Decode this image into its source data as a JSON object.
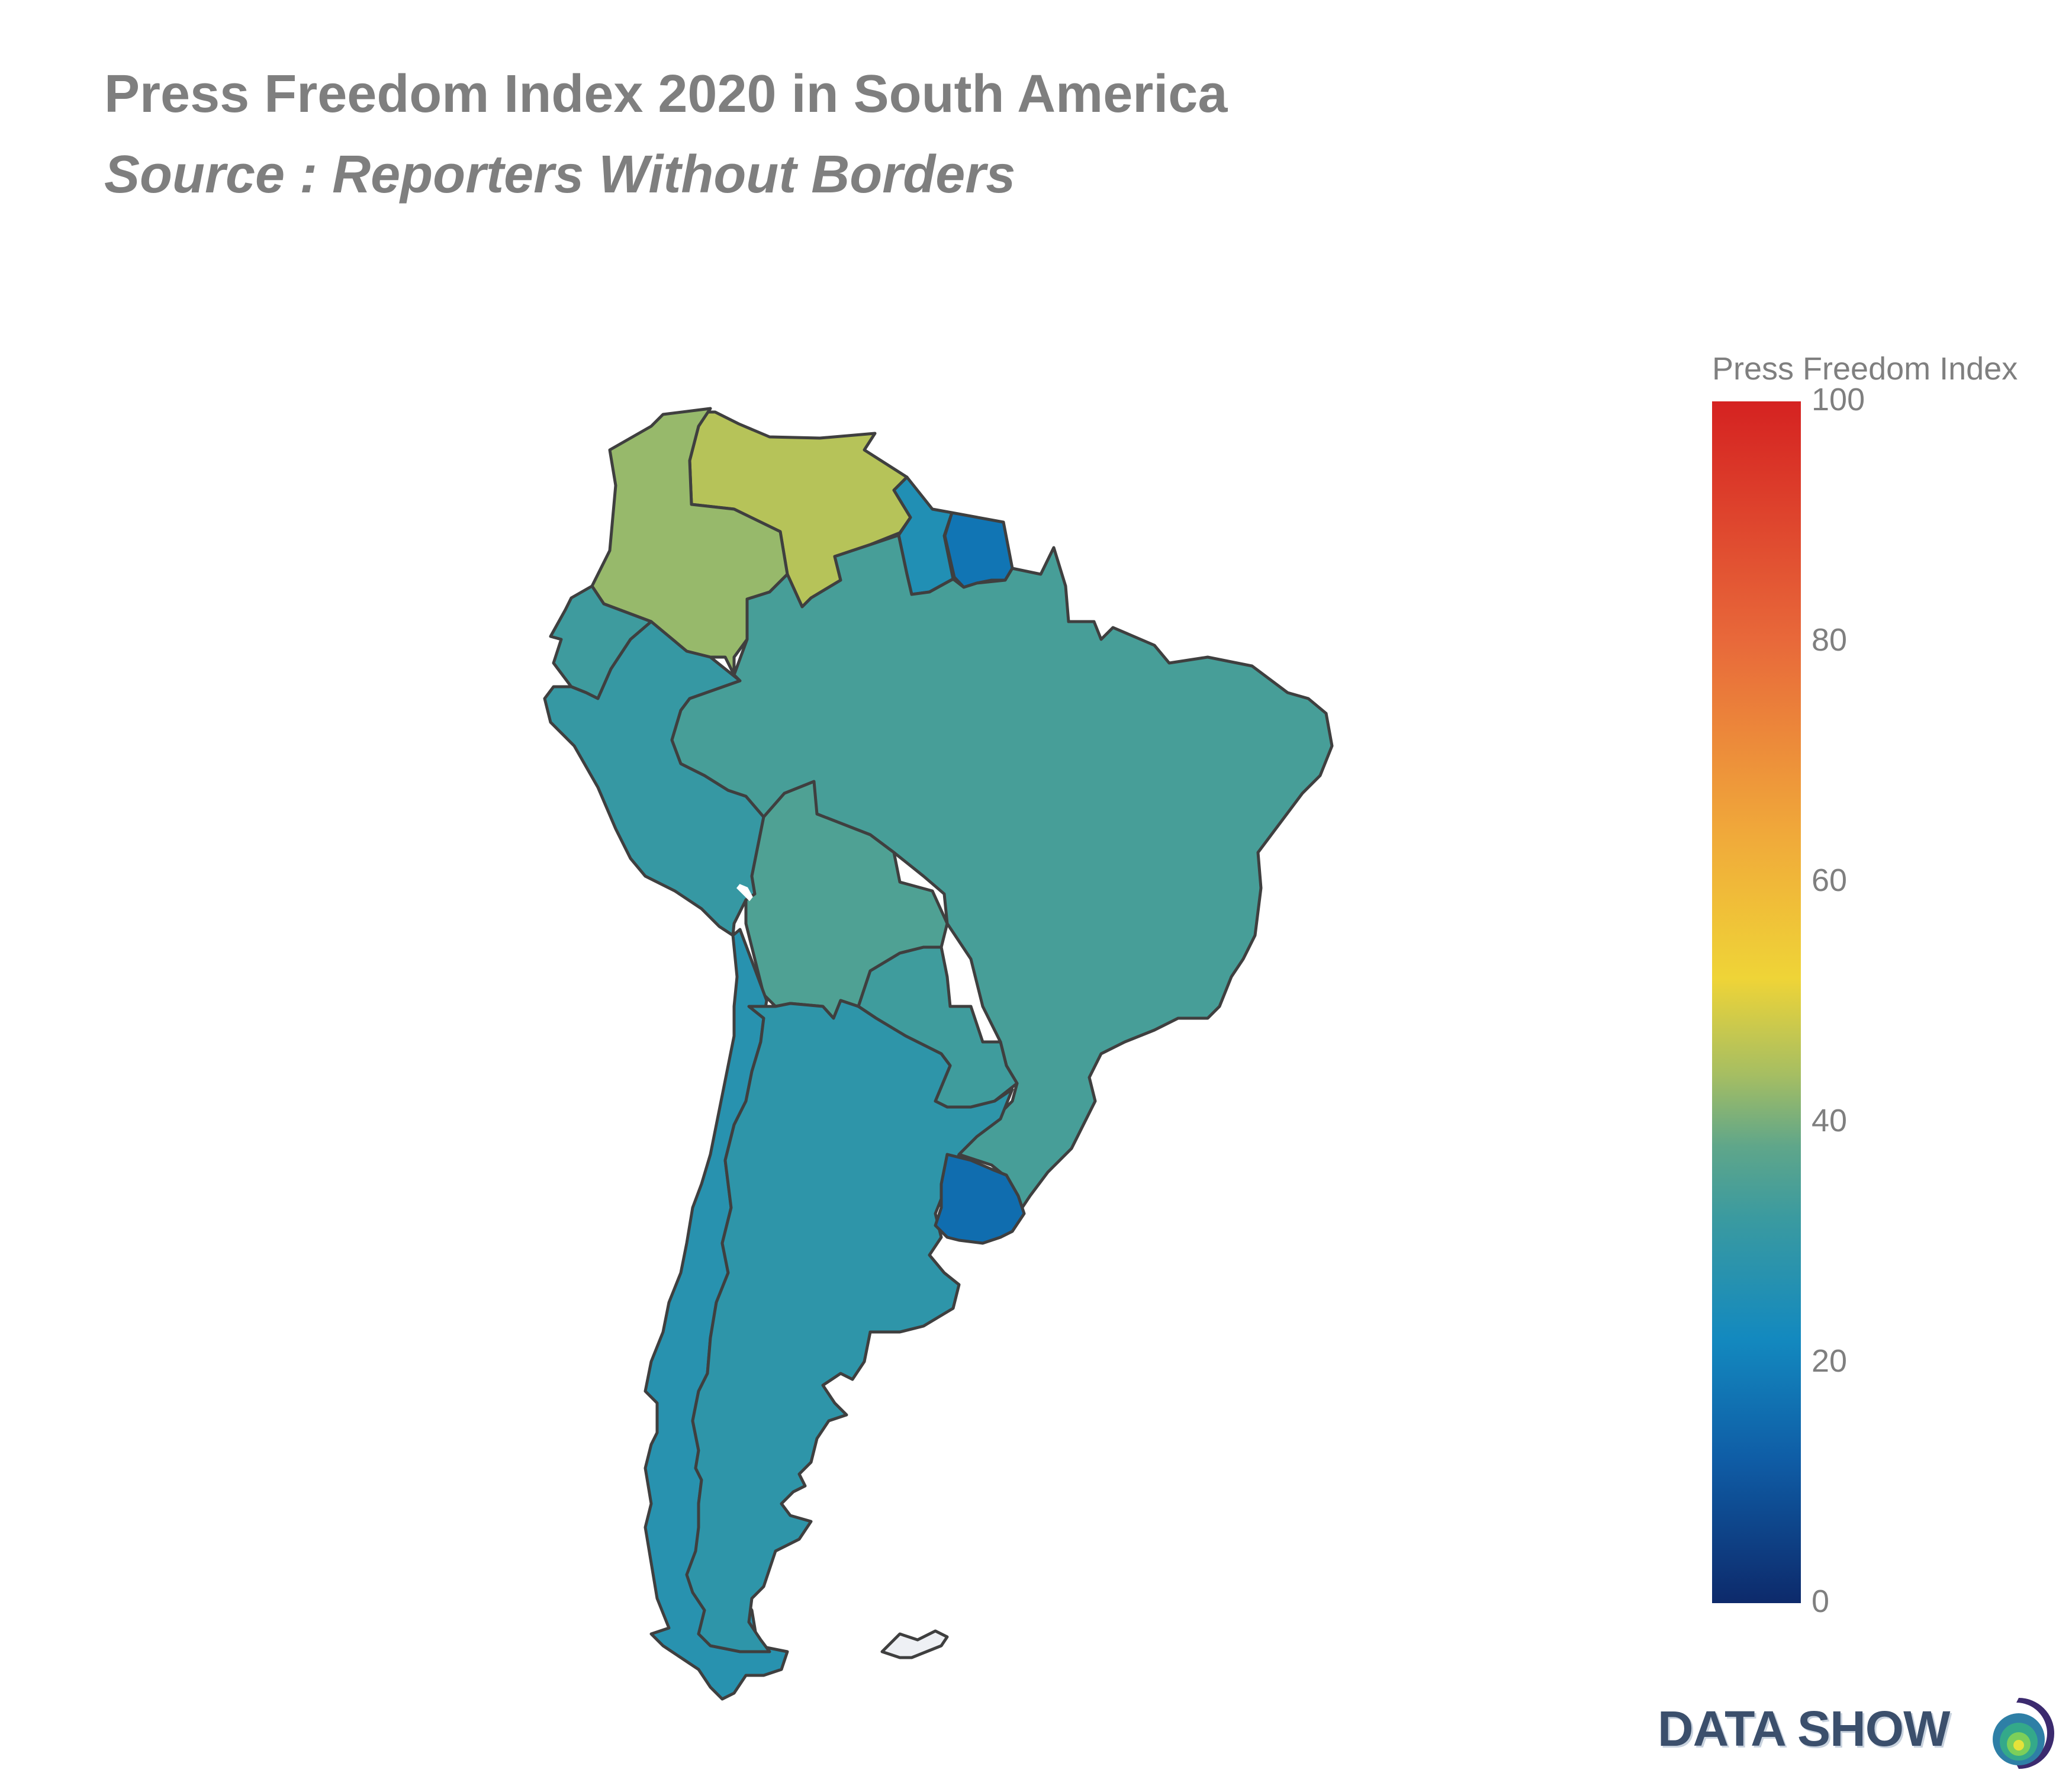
{
  "title": "Press Freedom Index 2020 in South America",
  "subtitle": "Source : Reporters Without Borders",
  "colorbar": {
    "title": "Press Freedom Index",
    "ticks": [
      "100",
      "80",
      "60",
      "40",
      "20",
      "0"
    ],
    "range": [
      0,
      100
    ],
    "colors": [
      "#0d2a6b",
      "#0f5da6",
      "#1389bf",
      "#3a9aa0",
      "#5fa68a",
      "#a6be62",
      "#efd437",
      "#f0a93a",
      "#e8693a",
      "#d52221"
    ]
  },
  "brand": {
    "text": "DATA SHOW",
    "logo_name": "data-show-logo"
  },
  "chart_data": {
    "type": "choropleth",
    "title": "Press Freedom Index 2020 in South America",
    "subtitle": "Source : Reporters Without Borders",
    "colorbar_title": "Press Freedom Index",
    "zrange": [
      0,
      100
    ],
    "colorbar_ticks": [
      0,
      20,
      40,
      60,
      80,
      100
    ],
    "regions": [
      {
        "name": "Venezuela",
        "value": 45.7
      },
      {
        "name": "Colombia",
        "value": 42.7
      },
      {
        "name": "Ecuador",
        "value": 32.6
      },
      {
        "name": "Peru",
        "value": 30.9
      },
      {
        "name": "Brazil",
        "value": 34.1
      },
      {
        "name": "Bolivia",
        "value": 35.4
      },
      {
        "name": "Paraguay",
        "value": 32.8
      },
      {
        "name": "Chile",
        "value": 27.3
      },
      {
        "name": "Argentina",
        "value": 29.0
      },
      {
        "name": "Uruguay",
        "value": 15.6
      },
      {
        "name": "Guyana",
        "value": 25.6
      },
      {
        "name": "Suriname",
        "value": 17.5
      }
    ]
  }
}
